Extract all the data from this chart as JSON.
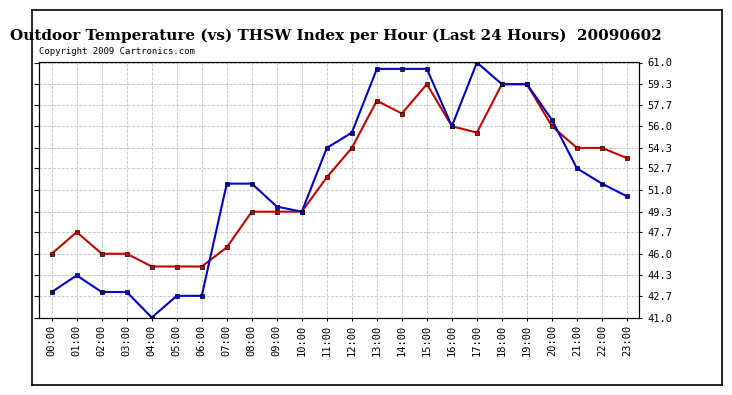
{
  "title": "Outdoor Temperature (vs) THSW Index per Hour (Last 24 Hours)  20090602",
  "copyright": "Copyright 2009 Cartronics.com",
  "hours": [
    "00:00",
    "01:00",
    "02:00",
    "03:00",
    "04:00",
    "05:00",
    "06:00",
    "07:00",
    "08:00",
    "09:00",
    "10:00",
    "11:00",
    "12:00",
    "13:00",
    "14:00",
    "15:00",
    "16:00",
    "17:00",
    "18:00",
    "19:00",
    "20:00",
    "21:00",
    "22:00",
    "23:00"
  ],
  "temp": [
    46.0,
    47.7,
    46.0,
    46.0,
    45.0,
    45.0,
    45.0,
    46.5,
    49.3,
    49.3,
    49.3,
    52.0,
    54.3,
    58.0,
    57.0,
    59.3,
    56.0,
    55.5,
    59.3,
    59.3,
    56.0,
    54.3,
    54.3,
    53.5
  ],
  "thsw": [
    43.0,
    44.3,
    43.0,
    43.0,
    41.0,
    42.7,
    42.7,
    51.5,
    51.5,
    49.7,
    49.3,
    54.3,
    55.5,
    60.5,
    60.5,
    60.5,
    56.0,
    61.0,
    59.3,
    59.3,
    56.5,
    52.7,
    51.5,
    50.5
  ],
  "temp_color": "#cc0000",
  "thsw_color": "#0000cc",
  "bg_color": "#ffffff",
  "grid_color": "#c0c0c0",
  "ylim": [
    41.0,
    61.0
  ],
  "yticks": [
    41.0,
    42.7,
    44.3,
    46.0,
    47.7,
    49.3,
    51.0,
    52.7,
    54.3,
    56.0,
    57.7,
    59.3,
    61.0
  ],
  "title_fontsize": 11,
  "copyright_fontsize": 6.5,
  "tick_fontsize": 7.5,
  "markersize": 3.5,
  "linewidth": 1.5
}
